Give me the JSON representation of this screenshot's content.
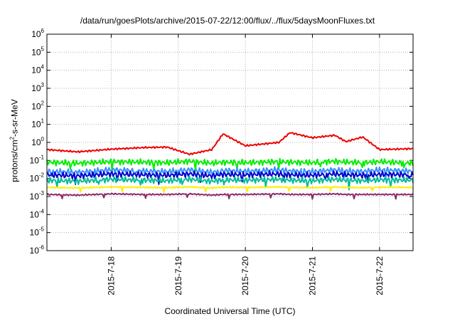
{
  "chart_data": {
    "type": "line",
    "title": "/data/run/goesPlots/archive/2015-07-22/12:00/flux/../flux/5daysMoonFluxes.txt",
    "xlabel": "Coordinated Universal Time (UTC)",
    "ylabel": {
      "pre": "protons/cm",
      "sup": "2",
      "post": "-s-sr-MeV"
    },
    "y_scale": "log",
    "ylim": [
      1e-06,
      1000000.0
    ],
    "y_ticks": [
      {
        "base": "10",
        "exp": "-6"
      },
      {
        "base": "10",
        "exp": "-5"
      },
      {
        "base": "10",
        "exp": "-4"
      },
      {
        "base": "10",
        "exp": "-3"
      },
      {
        "base": "10",
        "exp": "-2"
      },
      {
        "base": "10",
        "exp": "-1"
      },
      {
        "base": "10",
        "exp": "0"
      },
      {
        "base": "10",
        "exp": "1"
      },
      {
        "base": "10",
        "exp": "2"
      },
      {
        "base": "10",
        "exp": "3"
      },
      {
        "base": "10",
        "exp": "4"
      },
      {
        "base": "10",
        "exp": "5"
      },
      {
        "base": "10",
        "exp": "6"
      }
    ],
    "xlim": [
      "2015-07-17 01:00",
      "2015-07-22 12:00"
    ],
    "x_ticks": [
      "2015-7-18",
      "2015-7-19",
      "2015-7-20",
      "2015-7-21",
      "2015-7-22"
    ],
    "grid": true,
    "x": [
      "2015-07-17 01:00",
      "2015-07-17 12:00",
      "2015-07-18 00:00",
      "2015-07-18 12:00",
      "2015-07-18 20:00",
      "2015-07-19 04:00",
      "2015-07-19 12:00",
      "2015-07-19 16:00",
      "2015-07-20 00:00",
      "2015-07-20 12:00",
      "2015-07-20 16:00",
      "2015-07-21 00:00",
      "2015-07-21 08:00",
      "2015-07-21 12:00",
      "2015-07-21 18:00",
      "2015-07-22 00:00",
      "2015-07-22 12:00"
    ],
    "series": [
      {
        "color": "#ee0000",
        "values": [
          0.4,
          0.3,
          0.42,
          0.52,
          0.55,
          0.22,
          0.4,
          3.0,
          0.65,
          1.0,
          3.5,
          1.8,
          2.5,
          1.1,
          2.0,
          0.4,
          0.45
        ]
      },
      {
        "color": "#00ee00",
        "values": [
          0.08,
          0.07,
          0.085,
          0.08,
          0.075,
          0.09,
          0.07,
          0.08,
          0.075,
          0.085,
          0.08,
          0.075,
          0.09,
          0.08,
          0.075,
          0.085,
          0.07
        ]
      },
      {
        "color": "#3a8fff",
        "values": [
          0.025,
          0.022,
          0.03,
          0.026,
          0.024,
          0.03,
          0.022,
          0.028,
          0.025,
          0.03,
          0.026,
          0.024,
          0.03,
          0.026,
          0.024,
          0.03,
          0.025
        ]
      },
      {
        "color": "#0000cc",
        "values": [
          0.016,
          0.014,
          0.018,
          0.016,
          0.015,
          0.018,
          0.014,
          0.017,
          0.016,
          0.018,
          0.016,
          0.015,
          0.018,
          0.016,
          0.015,
          0.017,
          0.016
        ]
      },
      {
        "color": "#00bb99",
        "values": [
          0.008,
          0.007,
          0.009,
          0.008,
          0.0075,
          0.009,
          0.007,
          0.0085,
          0.008,
          0.009,
          0.008,
          0.0075,
          0.009,
          0.008,
          0.0075,
          0.0085,
          0.008
        ]
      },
      {
        "color": "#ffee00",
        "values": [
          0.0032,
          0.003,
          0.0034,
          0.0032,
          0.0031,
          0.0034,
          0.003,
          0.0033,
          0.0032,
          0.0034,
          0.0032,
          0.0031,
          0.0034,
          0.0032,
          0.0031,
          0.0033,
          0.0032
        ]
      },
      {
        "color": "#8b2a6a",
        "values": [
          0.0013,
          0.0012,
          0.0014,
          0.0013,
          0.0013,
          0.0014,
          0.0012,
          0.0013,
          0.0013,
          0.0014,
          0.0013,
          0.0013,
          0.0014,
          0.0013,
          0.0013,
          0.0013,
          0.0013
        ]
      }
    ]
  }
}
